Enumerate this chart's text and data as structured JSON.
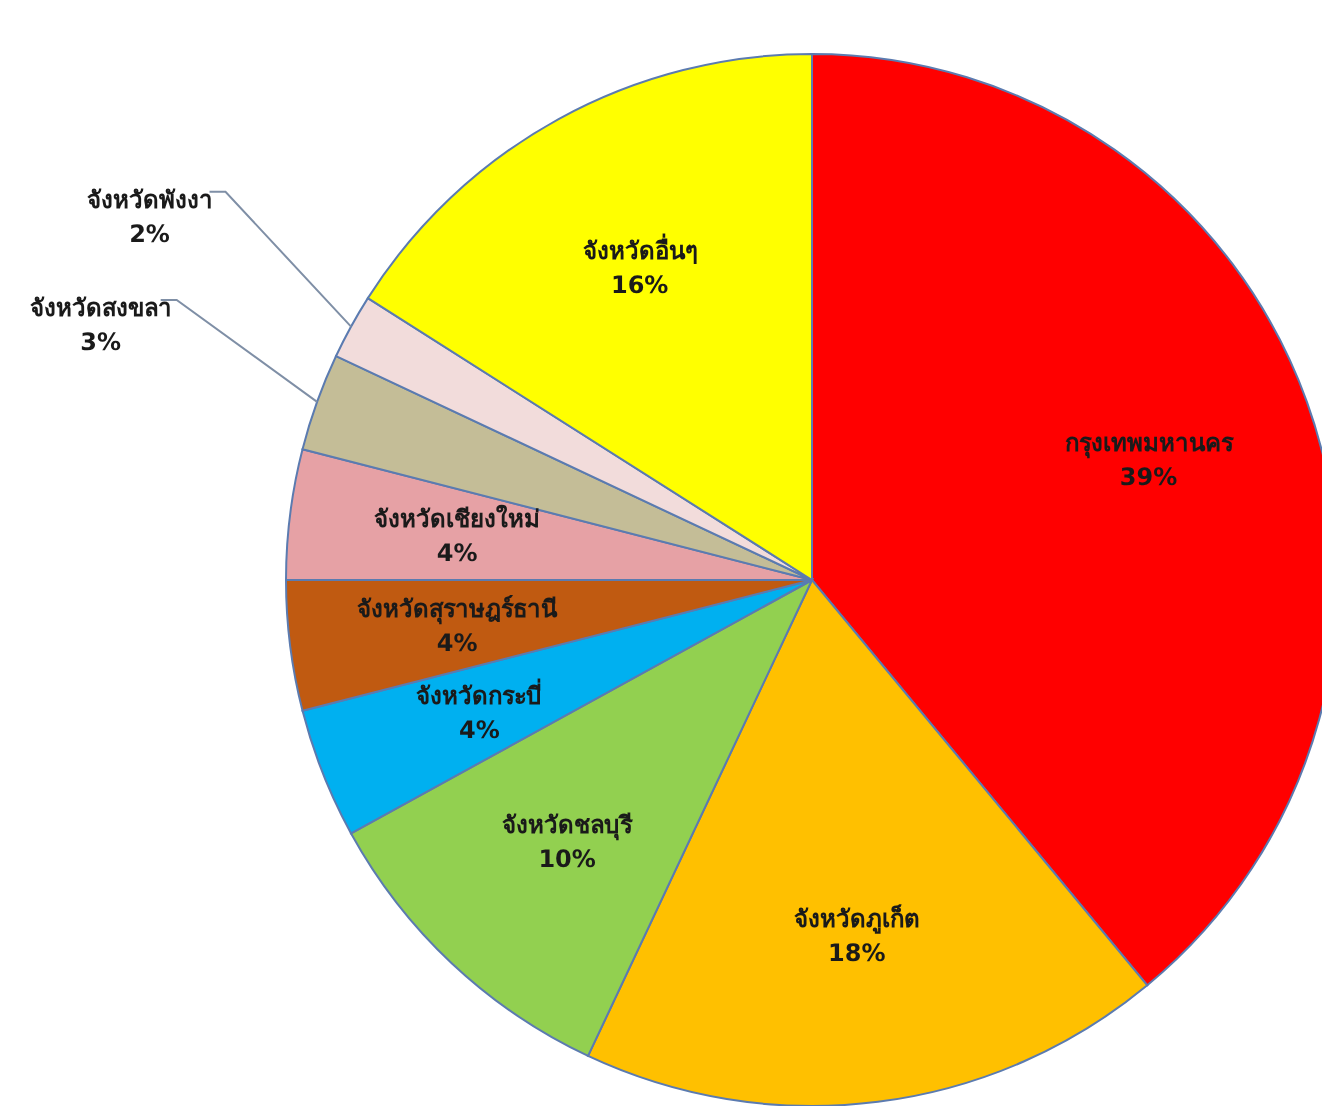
{
  "chart_data": {
    "type": "pie",
    "categories": [
      "กรุงเทพมหานคร",
      "จังหวัดภูเก็ต",
      "จังหวัดชลบุรี",
      "จังหวัดกระบี่",
      "จังหวัดสุราษฎร์ธานี",
      "จังหวัดเชียงใหม่",
      "จังหวัดสงขลา",
      "จังหวัดพังงา",
      "จังหวัดอื่นๆ"
    ],
    "values": [
      39,
      18,
      10,
      4,
      4,
      4,
      3,
      2,
      16
    ],
    "value_labels": [
      "39%",
      "18%",
      "10%",
      "4%",
      "4%",
      "4%",
      "3%",
      "2%",
      "16%"
    ],
    "colors": [
      "#ff0000",
      "#ffc000",
      "#92d050",
      "#00b0f0",
      "#c05a11",
      "#e6a1a5",
      "#c4bd97",
      "#f2dcdb",
      "#ffff00"
    ],
    "legend": false
  }
}
